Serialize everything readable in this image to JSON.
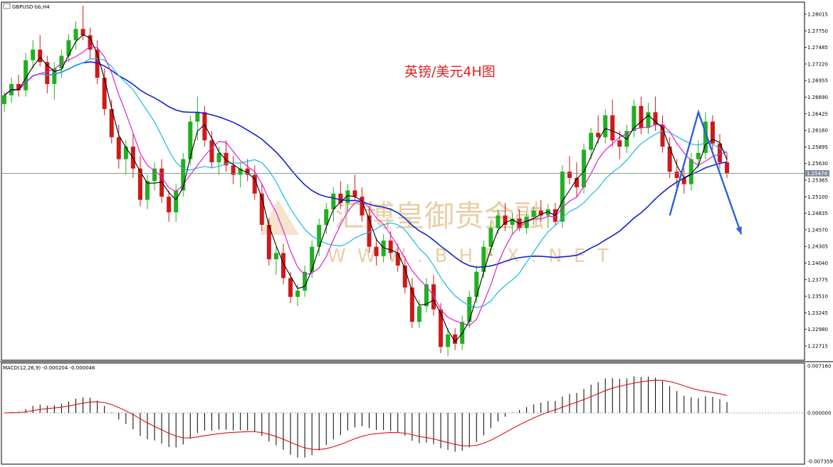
{
  "header": {
    "symbol_label": "GBPUSD-bb,H4",
    "chart_title": "英镑/美元4H图",
    "macd_label": "MACD(12,26,9) -0.000204 -0.000046"
  },
  "watermark": {
    "cn": "汇博皇御贵金融",
    "en": "W W W . B H F X . N E T"
  },
  "colors": {
    "bull": "#1fb01f",
    "bear": "#d01818",
    "ma_fast": "#000000",
    "ma_mid": "#e020d0",
    "ma_slow": "#18b8e8",
    "ma_long": "#1020d0",
    "signal": "#e01010",
    "forecast": "#2b5fd8",
    "price_tag": "#7f8f9f"
  },
  "chart_data": {
    "type": "candlestick",
    "symbol": "GBPUSD",
    "timeframe": "H4",
    "price_axis": {
      "ticks": [
        "1.28015",
        "1.27750",
        "1.27485",
        "1.27220",
        "1.26955",
        "1.26690",
        "1.26425",
        "1.26160",
        "1.25895",
        "1.25630",
        "1.25365",
        "1.25100",
        "1.24835",
        "1.24570",
        "1.24305",
        "1.24040",
        "1.23775",
        "1.23510",
        "1.23245",
        "1.22980",
        "1.22715"
      ],
      "range": [
        1.225,
        1.282
      ]
    },
    "current_price": "1.25474",
    "macd_axis": {
      "ticks": [
        "0.007160",
        "0.000000",
        "-0.007359"
      ],
      "range": [
        -0.00736,
        0.00716
      ]
    },
    "candles": [
      [
        1.2658,
        1.2678,
        1.2645,
        1.2672
      ],
      [
        1.2672,
        1.27,
        1.266,
        1.269
      ],
      [
        1.269,
        1.2705,
        1.267,
        1.268
      ],
      [
        1.268,
        1.274,
        1.267,
        1.2728
      ],
      [
        1.2728,
        1.276,
        1.2715,
        1.2745
      ],
      [
        1.2745,
        1.2768,
        1.2718,
        1.2725
      ],
      [
        1.2725,
        1.2735,
        1.2675,
        1.269
      ],
      [
        1.269,
        1.2725,
        1.2665,
        1.2715
      ],
      [
        1.2715,
        1.2745,
        1.27,
        1.2735
      ],
      [
        1.2735,
        1.277,
        1.2725,
        1.276
      ],
      [
        1.276,
        1.279,
        1.2745,
        1.2778
      ],
      [
        1.2778,
        1.2815,
        1.276,
        1.2768
      ],
      [
        1.2768,
        1.278,
        1.273,
        1.2745
      ],
      [
        1.2745,
        1.276,
        1.269,
        1.27
      ],
      [
        1.27,
        1.2715,
        1.264,
        1.265
      ],
      [
        1.265,
        1.2665,
        1.2595,
        1.2605
      ],
      [
        1.2605,
        1.2625,
        1.2555,
        1.257
      ],
      [
        1.257,
        1.26,
        1.2545,
        1.259
      ],
      [
        1.259,
        1.261,
        1.254,
        1.2555
      ],
      [
        1.2555,
        1.2575,
        1.2495,
        1.2505
      ],
      [
        1.2505,
        1.2545,
        1.249,
        1.2535
      ],
      [
        1.2535,
        1.2565,
        1.252,
        1.2555
      ],
      [
        1.2555,
        1.257,
        1.25,
        1.251
      ],
      [
        1.251,
        1.252,
        1.247,
        1.2485
      ],
      [
        1.2485,
        1.253,
        1.247,
        1.252
      ],
      [
        1.252,
        1.258,
        1.251,
        1.257
      ],
      [
        1.257,
        1.264,
        1.256,
        1.263
      ],
      [
        1.263,
        1.267,
        1.26,
        1.2645
      ],
      [
        1.2645,
        1.2655,
        1.259,
        1.26
      ],
      [
        1.26,
        1.2615,
        1.2555,
        1.2565
      ],
      [
        1.2565,
        1.259,
        1.2545,
        1.258
      ],
      [
        1.258,
        1.26,
        1.255,
        1.256
      ],
      [
        1.256,
        1.2575,
        1.253,
        1.2545
      ],
      [
        1.2545,
        1.2565,
        1.2525,
        1.2555
      ],
      [
        1.2555,
        1.257,
        1.2535,
        1.2545
      ],
      [
        1.2545,
        1.256,
        1.2505,
        1.2515
      ],
      [
        1.2515,
        1.253,
        1.2455,
        1.2465
      ],
      [
        1.2465,
        1.2475,
        1.24,
        1.241
      ],
      [
        1.241,
        1.243,
        1.2385,
        1.242
      ],
      [
        1.242,
        1.2435,
        1.237,
        1.238
      ],
      [
        1.238,
        1.239,
        1.234,
        1.235
      ],
      [
        1.235,
        1.237,
        1.2335,
        1.236
      ],
      [
        1.236,
        1.24,
        1.235,
        1.239
      ],
      [
        1.239,
        1.244,
        1.238,
        1.243
      ],
      [
        1.243,
        1.2475,
        1.2415,
        1.2465
      ],
      [
        1.2465,
        1.25,
        1.245,
        1.249
      ],
      [
        1.249,
        1.2525,
        1.247,
        1.2515
      ],
      [
        1.2515,
        1.2535,
        1.249,
        1.25
      ],
      [
        1.25,
        1.253,
        1.2485,
        1.252
      ],
      [
        1.252,
        1.2545,
        1.2505,
        1.251
      ],
      [
        1.251,
        1.2525,
        1.247,
        1.248
      ],
      [
        1.248,
        1.2495,
        1.242,
        1.243
      ],
      [
        1.243,
        1.2445,
        1.24,
        1.2415
      ],
      [
        1.2415,
        1.245,
        1.2405,
        1.244
      ],
      [
        1.244,
        1.2455,
        1.241,
        1.242
      ],
      [
        1.242,
        1.2435,
        1.239,
        1.24
      ],
      [
        1.24,
        1.2415,
        1.2355,
        1.2365
      ],
      [
        1.2365,
        1.238,
        1.23,
        1.231
      ],
      [
        1.231,
        1.2345,
        1.23,
        1.2335
      ],
      [
        1.2335,
        1.238,
        1.2325,
        1.237
      ],
      [
        1.237,
        1.2385,
        1.232,
        1.233
      ],
      [
        1.233,
        1.234,
        1.226,
        1.227
      ],
      [
        1.227,
        1.23,
        1.2255,
        1.229
      ],
      [
        1.229,
        1.23,
        1.2265,
        1.2275
      ],
      [
        1.2275,
        1.232,
        1.2265,
        1.231
      ],
      [
        1.231,
        1.236,
        1.23,
        1.235
      ],
      [
        1.235,
        1.24,
        1.234,
        1.239
      ],
      [
        1.239,
        1.244,
        1.238,
        1.243
      ],
      [
        1.243,
        1.247,
        1.2415,
        1.246
      ],
      [
        1.246,
        1.249,
        1.245,
        1.248
      ],
      [
        1.248,
        1.25,
        1.2455,
        1.2465
      ],
      [
        1.2465,
        1.2485,
        1.245,
        1.2475
      ],
      [
        1.2475,
        1.249,
        1.2455,
        1.246
      ],
      [
        1.246,
        1.2485,
        1.245,
        1.2478
      ],
      [
        1.2478,
        1.2495,
        1.2465,
        1.2488
      ],
      [
        1.2488,
        1.2505,
        1.247,
        1.248
      ],
      [
        1.248,
        1.2498,
        1.246,
        1.249
      ],
      [
        1.249,
        1.25,
        1.2465,
        1.247
      ],
      [
        1.247,
        1.256,
        1.246,
        1.255
      ],
      [
        1.255,
        1.2575,
        1.253,
        1.254
      ],
      [
        1.254,
        1.2565,
        1.251,
        1.2525
      ],
      [
        1.2525,
        1.2595,
        1.2515,
        1.2585
      ],
      [
        1.2585,
        1.262,
        1.257,
        1.2612
      ],
      [
        1.2612,
        1.264,
        1.2595,
        1.2605
      ],
      [
        1.2605,
        1.265,
        1.2595,
        1.264
      ],
      [
        1.264,
        1.2665,
        1.259,
        1.26
      ],
      [
        1.26,
        1.2615,
        1.257,
        1.259
      ],
      [
        1.259,
        1.2625,
        1.258,
        1.2615
      ],
      [
        1.2615,
        1.2665,
        1.2605,
        1.2655
      ],
      [
        1.2655,
        1.267,
        1.261,
        1.262
      ],
      [
        1.262,
        1.266,
        1.261,
        1.2645
      ],
      [
        1.2645,
        1.267,
        1.2615,
        1.2625
      ],
      [
        1.2625,
        1.264,
        1.258,
        1.259
      ],
      [
        1.259,
        1.2605,
        1.254,
        1.255
      ],
      [
        1.255,
        1.257,
        1.2525,
        1.254
      ],
      [
        1.254,
        1.2555,
        1.2515,
        1.253
      ],
      [
        1.253,
        1.258,
        1.252,
        1.257
      ],
      [
        1.257,
        1.26,
        1.2555,
        1.258
      ],
      [
        1.258,
        1.2645,
        1.257,
        1.263
      ],
      [
        1.263,
        1.264,
        1.2585,
        1.2595
      ],
      [
        1.2595,
        1.261,
        1.2555,
        1.2565
      ],
      [
        1.2565,
        1.258,
        1.254,
        1.2547
      ]
    ],
    "forecast_path": [
      {
        "bar": 93,
        "price": 1.248
      },
      {
        "bar": 97,
        "price": 1.2645
      },
      {
        "bar": 103,
        "price": 1.245
      }
    ]
  }
}
